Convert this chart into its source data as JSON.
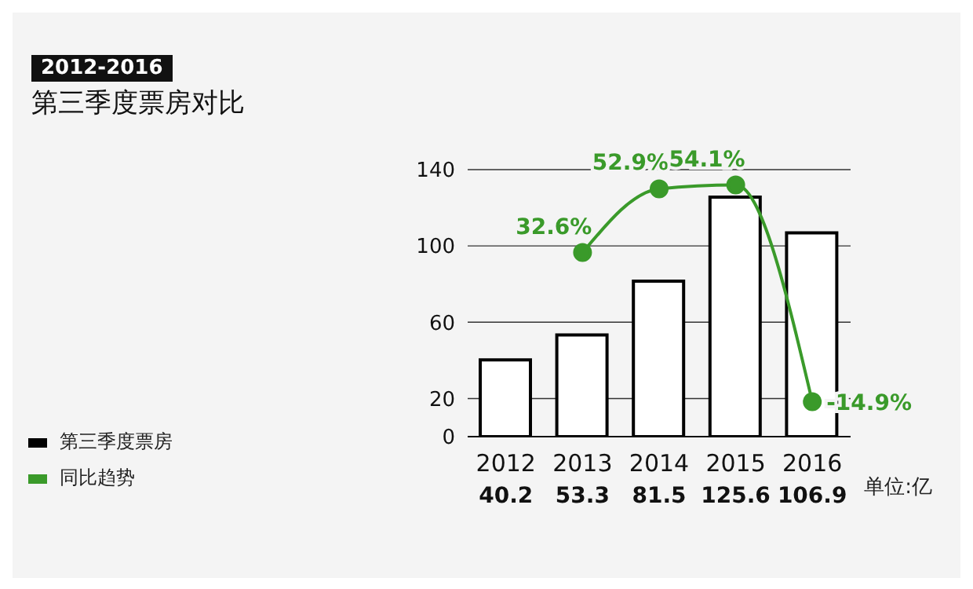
{
  "chart_data": {
    "type": "bar",
    "title": "2012-2016",
    "subtitle": "第三季度票房对比",
    "categories": [
      "2012",
      "2013",
      "2014",
      "2015",
      "2016"
    ],
    "series": [
      {
        "name": "第三季度票房",
        "color": "#000000",
        "values": [
          40.2,
          53.3,
          81.5,
          125.6,
          106.9
        ]
      },
      {
        "name": "同比趋势",
        "type": "line",
        "axis": "y2",
        "color": "#3a9a2a",
        "values": [
          null,
          32.6,
          52.9,
          54.1,
          -14.9
        ],
        "value_labels": [
          null,
          "32.6%",
          "52.9%",
          "54.1%",
          "-14.9%"
        ]
      }
    ],
    "ylim": [
      0,
      140
    ],
    "yticks": [
      0,
      20,
      60,
      100,
      140
    ],
    "y2lim": [
      -26,
      59
    ],
    "grid": "y",
    "legend": "bottom left",
    "data_labels": true,
    "marker": "circle",
    "annotations": [
      "单位:亿"
    ]
  }
}
